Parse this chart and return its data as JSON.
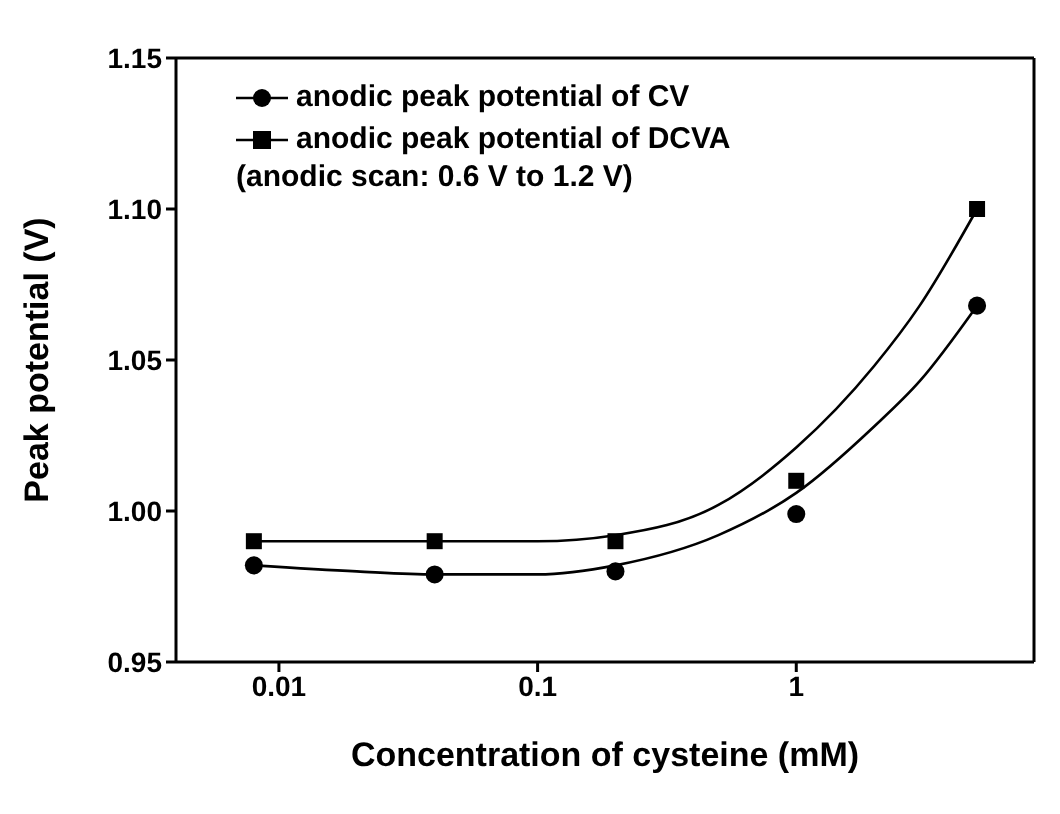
{
  "chart_data": {
    "type": "scatter",
    "xlabel": "Concentration of cysteine (mM)",
    "ylabel": "Peak potential (V)",
    "log": "x",
    "xlim": [
      0.004,
      8.3
    ],
    "xticks": [
      0.01,
      0.1,
      1
    ],
    "ylim": [
      0.95,
      1.15
    ],
    "yticks": [
      0.95,
      {
        "value": 1.0,
        "label": "1.00"
      },
      1.05,
      {
        "value": 1.1,
        "label": "1.10"
      },
      1.15
    ],
    "legend": "top left",
    "grid": false,
    "annotations": [
      "(anodic scan: 0.6 V to 1.2 V)"
    ],
    "series": [
      {
        "name": "anodic peak potential of CV",
        "marker": "circle",
        "color": "#000000",
        "x": [
          0.008,
          0.04,
          0.2,
          1,
          5
        ],
        "values": [
          0.982,
          0.979,
          0.98,
          0.999,
          1.068
        ]
      },
      {
        "name": "anodic peak potential of DCVA",
        "marker": "square",
        "color": "#000000",
        "x": [
          0.008,
          0.04,
          0.2,
          1,
          5
        ],
        "values": [
          0.99,
          0.99,
          0.99,
          1.01,
          1.1
        ]
      },
      {
        "type": "line",
        "color": "#000000",
        "x": [
          0.008,
          0.02,
          0.04,
          0.1,
          0.2,
          0.5,
          1,
          2,
          3,
          5
        ],
        "values": [
          0.982,
          0.98,
          0.979,
          0.979,
          0.982,
          0.992,
          1.006,
          1.028,
          1.043,
          1.068
        ]
      },
      {
        "type": "line",
        "color": "#000000",
        "x": [
          0.008,
          0.04,
          0.1,
          0.2,
          0.5,
          1,
          2,
          3,
          5
        ],
        "values": [
          0.99,
          0.99,
          0.99,
          0.992,
          1.002,
          1.021,
          1.048,
          1.068,
          1.1
        ]
      }
    ]
  }
}
